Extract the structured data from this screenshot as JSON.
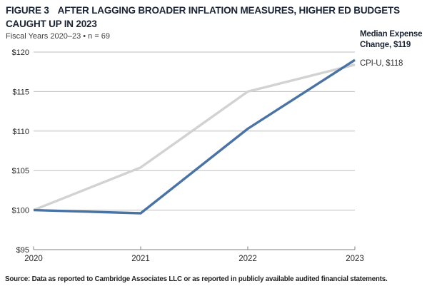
{
  "header": {
    "figure_label": "FIGURE 3",
    "title_line1": "AFTER LAGGING BROADER INFLATION MEASURES, HIGHER ED BUDGETS",
    "title_line2": "CAUGHT UP IN 2023",
    "subtitle": "Fiscal Years 2020–23 • n = 69"
  },
  "chart_data": {
    "type": "line",
    "title": "After lagging broader inflation measures, higher ed budgets caught up in 2023",
    "x": [
      2020,
      2021,
      2022,
      2023
    ],
    "x_tick_labels": [
      "2020",
      "2021",
      "2022",
      "2023"
    ],
    "xlabel": "",
    "ylabel": "",
    "ylim": [
      95,
      120
    ],
    "y_tick_values": [
      120,
      115,
      110,
      105,
      100,
      95
    ],
    "y_tick_labels": [
      "$120",
      "$115",
      "$110",
      "$105",
      "$100",
      "$95"
    ],
    "grid": true,
    "legend_position": "right-of-line-ends",
    "series": [
      {
        "name": "CPI-U",
        "values": [
          100,
          105.4,
          115,
          118.4
        ],
        "end_label": "CPI-U, $118",
        "color": "#d2d2d2"
      },
      {
        "name": "Median Expense Change",
        "values": [
          100,
          99.6,
          110.3,
          119
        ],
        "end_label": "Median Expense Change, $119",
        "color": "#4a73a5"
      }
    ],
    "colors": {
      "grid": "#bdbdbd",
      "axis": "#7f7f7f",
      "tick_text": "#262626"
    }
  },
  "annotations": {
    "median_label": "Median Expense Change, $119",
    "cpi_label": "CPI-U, $118"
  },
  "footer": {
    "source": "Source: Data as reported to Cambridge Associates LLC or as reported in publicly available audited financial statements."
  }
}
